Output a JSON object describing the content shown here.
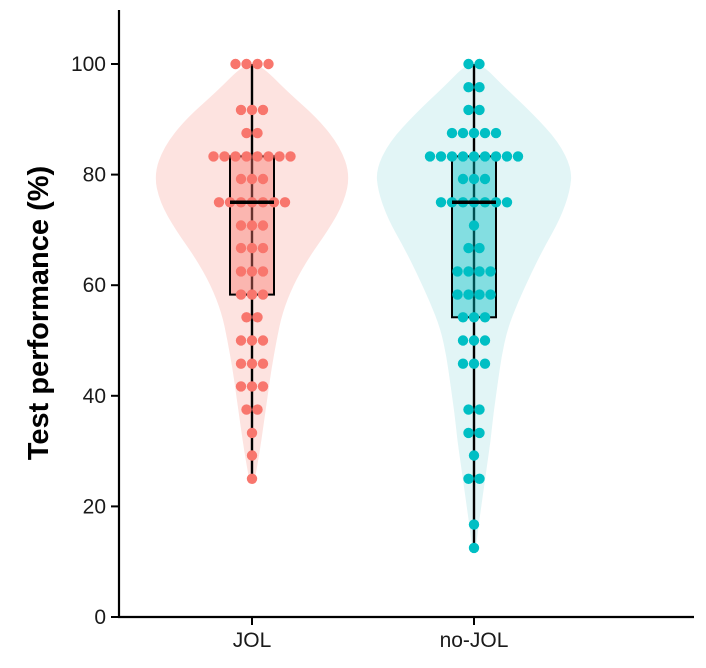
{
  "chart_data": {
    "type": "violin",
    "title": "",
    "xlabel": "",
    "ylabel": "Test performance (%)",
    "ylim": [
      0,
      110
    ],
    "yticks": [
      0,
      20,
      40,
      60,
      80,
      100
    ],
    "ytick_labels": [
      "0",
      "20",
      "40",
      "60",
      "80",
      "100"
    ],
    "grid": false,
    "legend": "none",
    "groups": [
      {
        "name": "JOL",
        "color": "#f8766d",
        "violin_color": "#fde3e0",
        "box": {
          "min": 25,
          "q1": 58.3,
          "median": 75,
          "q3": 83.3,
          "max": 100
        },
        "density": [
          [
            25,
            0.03
          ],
          [
            30,
            0.08
          ],
          [
            35,
            0.12
          ],
          [
            40,
            0.16
          ],
          [
            45,
            0.2
          ],
          [
            50,
            0.25
          ],
          [
            55,
            0.31
          ],
          [
            60,
            0.42
          ],
          [
            65,
            0.58
          ],
          [
            70,
            0.78
          ],
          [
            75,
            0.94
          ],
          [
            80,
            1.0
          ],
          [
            85,
            0.9
          ],
          [
            90,
            0.68
          ],
          [
            95,
            0.36
          ],
          [
            100,
            0.08
          ]
        ],
        "points": [
          [
            100,
            4
          ],
          [
            91.7,
            3
          ],
          [
            87.5,
            2
          ],
          [
            83.3,
            8
          ],
          [
            79.2,
            3
          ],
          [
            75,
            7
          ],
          [
            70.8,
            3
          ],
          [
            66.7,
            3
          ],
          [
            62.5,
            3
          ],
          [
            58.3,
            3
          ],
          [
            54.2,
            2
          ],
          [
            50,
            3
          ],
          [
            45.8,
            3
          ],
          [
            41.7,
            3
          ],
          [
            37.5,
            2
          ],
          [
            33.3,
            1
          ],
          [
            29.2,
            1
          ],
          [
            25,
            1
          ]
        ]
      },
      {
        "name": "no-JOL",
        "color": "#00bfc4",
        "violin_color": "#e2f5f6",
        "box": {
          "min": 12.5,
          "q1": 54.2,
          "median": 75,
          "q3": 83.3,
          "max": 100
        },
        "density": [
          [
            12.5,
            0.02
          ],
          [
            17,
            0.05
          ],
          [
            22,
            0.09
          ],
          [
            27,
            0.13
          ],
          [
            32,
            0.17
          ],
          [
            37,
            0.2
          ],
          [
            42,
            0.24
          ],
          [
            47,
            0.28
          ],
          [
            52,
            0.34
          ],
          [
            57,
            0.45
          ],
          [
            62,
            0.58
          ],
          [
            67,
            0.72
          ],
          [
            72,
            0.88
          ],
          [
            77,
            0.98
          ],
          [
            81,
            1.0
          ],
          [
            86,
            0.86
          ],
          [
            91,
            0.6
          ],
          [
            96,
            0.3
          ],
          [
            100,
            0.08
          ]
        ],
        "points": [
          [
            100,
            2
          ],
          [
            95.8,
            2
          ],
          [
            91.7,
            2
          ],
          [
            87.5,
            5
          ],
          [
            83.3,
            9
          ],
          [
            79.2,
            3
          ],
          [
            75,
            7
          ],
          [
            70.8,
            1
          ],
          [
            66.7,
            2
          ],
          [
            62.5,
            4
          ],
          [
            58.3,
            4
          ],
          [
            54.2,
            3
          ],
          [
            50,
            3
          ],
          [
            45.8,
            3
          ],
          [
            37.5,
            2
          ],
          [
            33.3,
            2
          ],
          [
            29.2,
            1
          ],
          [
            25,
            2
          ],
          [
            16.7,
            1
          ],
          [
            12.5,
            1
          ]
        ]
      }
    ]
  }
}
